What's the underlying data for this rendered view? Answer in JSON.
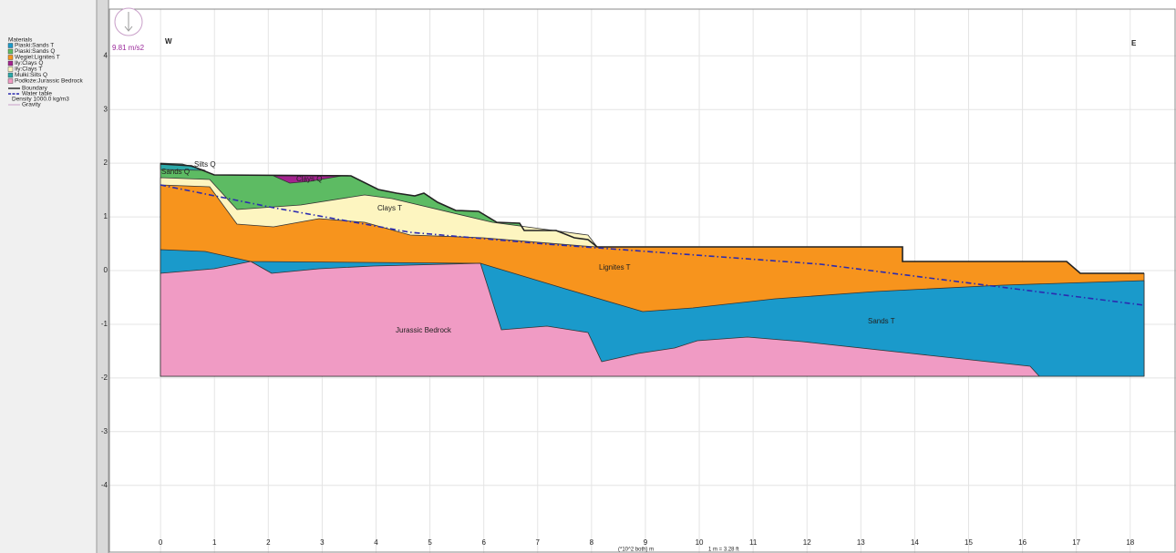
{
  "legend": {
    "title": "Materials",
    "materials": [
      {
        "label": "Piaski:Sands T",
        "color": "#1a9acb"
      },
      {
        "label": "Piaski:Sands Q",
        "color": "#5dbb63"
      },
      {
        "label": "Węgiel:Lignites T",
        "color": "#f7941d"
      },
      {
        "label": "Iły:Clays Q",
        "color": "#a3238e"
      },
      {
        "label": "Iły:Clays T",
        "color": "#fdf5c0"
      },
      {
        "label": "Mułki:Silts Q",
        "color": "#2ba8a8"
      },
      {
        "label": "Podłoże:Jurassic Bedrock",
        "color": "#f09bc4"
      }
    ],
    "boundary": "Boundary",
    "water_table": "Water table",
    "density": "Density 1000.0 kg/m3",
    "gravity": "Gravity"
  },
  "gravity_label": "9.81 m/s2",
  "west": "W",
  "east": "E",
  "region_labels": {
    "silts_q": "Silts Q",
    "sands_q": "Sands Q",
    "clays_q": "Clays Q",
    "clays_t": "Clays T",
    "lignites_t": "Lignites T",
    "bedrock": "Jurassic Bedrock",
    "sands_t": "Sands T"
  },
  "axes": {
    "xlim": [
      -0.95,
      18.85
    ],
    "ylim": [
      -5.26,
      4.87
    ],
    "xticks": [
      0,
      1,
      2,
      3,
      4,
      5,
      6,
      7,
      8,
      9,
      10,
      11,
      12,
      13,
      14,
      15,
      16,
      17,
      18
    ],
    "yticks": [
      -4,
      -3,
      -2,
      -1,
      0,
      1,
      2,
      3,
      4
    ],
    "x_unit": "(*10^2 both)  m",
    "conversion": "1 m = 3.28 ft"
  }
}
